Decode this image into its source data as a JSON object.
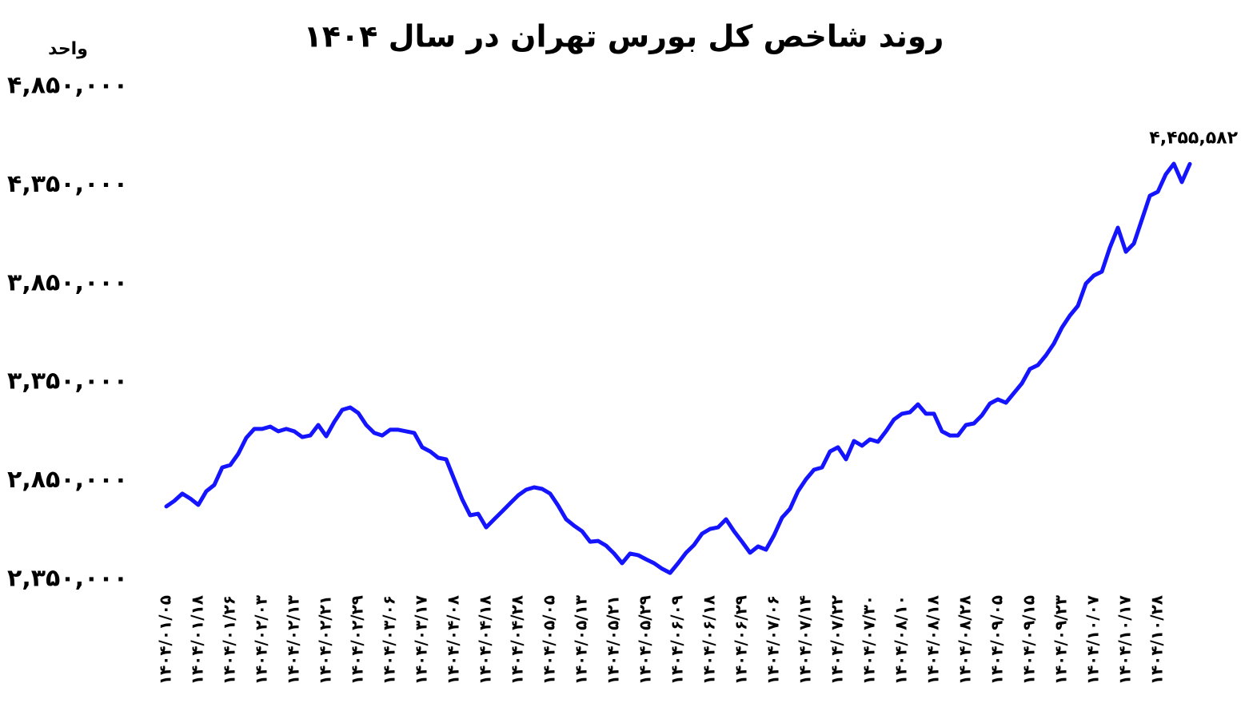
{
  "chart_data": {
    "type": "line",
    "title": "روند شاخص کل بورس تهران در سال ۱۴۰۴",
    "y_axis_label": "واحد",
    "categories": [
      "۱۴۰۴/۰۱/۰۵",
      null,
      null,
      null,
      "۱۴۰۴/۰۱/۱۸",
      null,
      null,
      null,
      "۱۴۰۴/۰۱/۲۶",
      null,
      null,
      null,
      "۱۴۰۴/۰۲/۰۳",
      null,
      null,
      null,
      "۱۴۰۴/۰۲/۱۳",
      null,
      null,
      null,
      "۱۴۰۴/۰۲/۲۱",
      null,
      null,
      null,
      "۱۴۰۴/۰۲/۲۹",
      null,
      null,
      null,
      "۱۴۰۴/۰۳/۰۶",
      null,
      null,
      null,
      "۱۴۰۴/۰۳/۱۷",
      null,
      null,
      null,
      "۱۴۰۴/۰۴/۰۸",
      null,
      null,
      null,
      "۱۴۰۴/۰۴/۱۸",
      null,
      null,
      null,
      "۱۴۰۴/۰۴/۲۸",
      null,
      null,
      null,
      "۱۴۰۴/۰۵/۰۵",
      null,
      null,
      null,
      "۱۴۰۴/۰۵/۱۳",
      null,
      null,
      null,
      "۱۴۰۴/۰۵/۲۱",
      null,
      null,
      null,
      "۱۴۰۴/۰۵/۲۹",
      null,
      null,
      null,
      "۱۴۰۴/۰۶/۰۹",
      null,
      null,
      null,
      "۱۴۰۴/۰۶/۱۸",
      null,
      null,
      null,
      "۱۴۰۴/۰۶/۲۹",
      null,
      null,
      null,
      "۱۴۰۴/۰۷/۰۶",
      null,
      null,
      null,
      "۱۴۰۴/۰۷/۱۴",
      null,
      null,
      null,
      "۱۴۰۴/۰۷/۲۲",
      null,
      null,
      null,
      "۱۴۰۴/۰۷/۳۰",
      null,
      null,
      null,
      "۱۴۰۴/۰۸/۱۰",
      null,
      null,
      null,
      "۱۴۰۴/۰۸/۱۸",
      null,
      null,
      null,
      "۱۴۰۴/۰۸/۲۸",
      null,
      null,
      null,
      "۱۴۰۴/۰۹/۰۵",
      null,
      null,
      null,
      "۱۴۰۴/۰۹/۱۵",
      null,
      null,
      null,
      "۱۴۰۴/۰۹/۲۳",
      null,
      null,
      null,
      "۱۴۰۴/۱۰/۰۷",
      null,
      null,
      null,
      "۱۴۰۴/۱۰/۱۷",
      null,
      null,
      null,
      "۱۴۰۴/۱۰/۲۸",
      null,
      null,
      null,
      null
    ],
    "values": [
      2719000,
      2747000,
      2784000,
      2759000,
      2727000,
      2796000,
      2828000,
      2917000,
      2929000,
      2986000,
      3067000,
      3112000,
      3112000,
      3124000,
      3100000,
      3112000,
      3100000,
      3071000,
      3079000,
      3132000,
      3075000,
      3148000,
      3209000,
      3221000,
      3193000,
      3132000,
      3092000,
      3079000,
      3108000,
      3108000,
      3100000,
      3092000,
      3019000,
      2998000,
      2966000,
      2958000,
      2857000,
      2755000,
      2674000,
      2682000,
      2613000,
      2654000,
      2694000,
      2735000,
      2775000,
      2804000,
      2816000,
      2808000,
      2784000,
      2723000,
      2654000,
      2621000,
      2593000,
      2540000,
      2544000,
      2520000,
      2480000,
      2431000,
      2480000,
      2472000,
      2451000,
      2431000,
      2403000,
      2382000,
      2431000,
      2484000,
      2524000,
      2581000,
      2605000,
      2613000,
      2654000,
      2593000,
      2540000,
      2484000,
      2516000,
      2500000,
      2573000,
      2662000,
      2707000,
      2796000,
      2857000,
      2905000,
      2917000,
      2998000,
      3019000,
      2958000,
      3051000,
      3027000,
      3059000,
      3047000,
      3100000,
      3160000,
      3189000,
      3197000,
      3237000,
      3189000,
      3189000,
      3100000,
      3079000,
      3079000,
      3132000,
      3140000,
      3181000,
      3241000,
      3262000,
      3245000,
      3294000,
      3343000,
      3416000,
      3436000,
      3485000,
      3545000,
      3626000,
      3687000,
      3736000,
      3849000,
      3890000,
      3910000,
      4032000,
      4133000,
      4011000,
      4052000,
      4173000,
      4295000,
      4315000,
      4404000,
      4457000,
      4364000,
      4455582
    ],
    "last_value_label": {
      "value": 4455582,
      "label": "۴,۴۵۵,۵۸۲"
    },
    "color": "#1414ff",
    "ylim": [
      2350000,
      4850000
    ],
    "yticks": [
      {
        "value": 2350000,
        "label": "۲,۳۵۰,۰۰۰"
      },
      {
        "value": 2850000,
        "label": "۲,۸۵۰,۰۰۰"
      },
      {
        "value": 3350000,
        "label": "۳,۳۵۰,۰۰۰"
      },
      {
        "value": 3850000,
        "label": "۳,۸۵۰,۰۰۰"
      },
      {
        "value": 4350000,
        "label": "۴,۳۵۰,۰۰۰"
      },
      {
        "value": 4850000,
        "label": "۴,۸۵۰,۰۰۰"
      }
    ],
    "grid": false
  }
}
